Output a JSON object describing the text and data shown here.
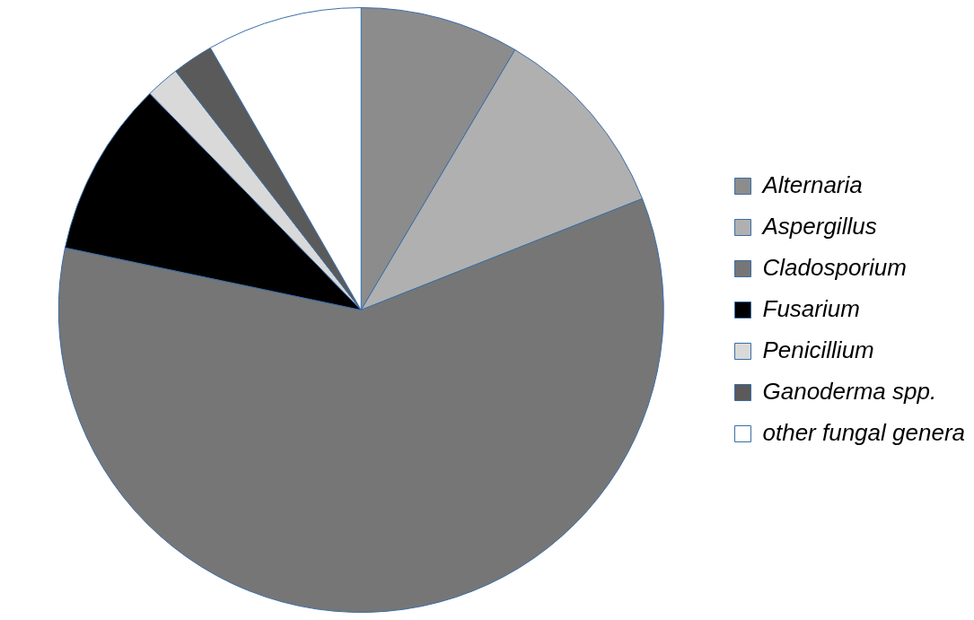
{
  "chart_data": {
    "type": "pie",
    "categories": [
      "Alternaria",
      "Aspergillus",
      "Cladosporium",
      "Fusarium",
      "Penicillium",
      "Ganoderma spp.",
      "other fungal genera"
    ],
    "values": [
      8.5,
      10.5,
      59.3,
      9.4,
      1.8,
      2.2,
      8.3
    ],
    "colors": [
      "#8c8c8c",
      "#b0b0b0",
      "#767676",
      "#000000",
      "#d9d9d9",
      "#5a5a5a",
      "#ffffff"
    ],
    "legend": "right"
  }
}
